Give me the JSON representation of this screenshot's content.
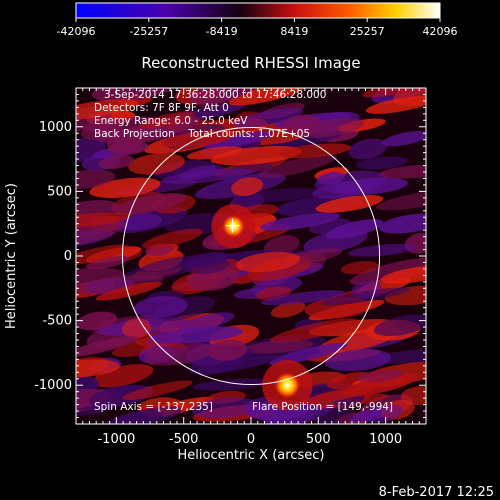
{
  "colorbar": {
    "ticks": [
      "-42096",
      "-25257",
      "-8419",
      "8419",
      "25257",
      "42096"
    ]
  },
  "plot": {
    "title": "Reconstructed RHESSI Image",
    "xlabel": "Heliocentric X (arcsec)",
    "ylabel": "Heliocentric Y (arcsec)",
    "x_ticks": [
      "-1000",
      "-500",
      "0",
      "500",
      "1000"
    ],
    "y_ticks": [
      "1000",
      "500",
      "0",
      "-500",
      "-1000"
    ],
    "info_lines": [
      "3-Sep-2014 17:36:28.000 to 17:46:28.000",
      "Detectors: 7F 8F 9F, Att 0",
      "Energy Range: 6.0 - 25.0 keV",
      "Back Projection    Total counts: 1.07E+05"
    ],
    "spin_axis": "Spin Axis = [-137,235]",
    "flare_position": "Flare Position = [149,-994]"
  },
  "footer": {
    "timestamp": "8-Feb-2017 12:25"
  },
  "chart_data": {
    "type": "heatmap",
    "title": "Reconstructed RHESSI Image",
    "xlabel": "Heliocentric X (arcsec)",
    "ylabel": "Heliocentric Y (arcsec)",
    "xlim": [
      -1300,
      1300
    ],
    "ylim": [
      -1300,
      1300
    ],
    "colorbar_range": [
      -42096,
      42096
    ],
    "solar_limb_center": [
      0,
      0
    ],
    "solar_limb_radius": 955,
    "sources": [
      {
        "x": -130,
        "y": 230,
        "peak": 30000
      },
      {
        "x": 270,
        "y": -1000,
        "peak": 42096
      }
    ],
    "marker": {
      "x": -137,
      "y": 235
    },
    "colormap": [
      "#0000ff",
      "#4a00a8",
      "#000000",
      "#c81010",
      "#ff6a00",
      "#ffd800",
      "#ffffff"
    ]
  }
}
